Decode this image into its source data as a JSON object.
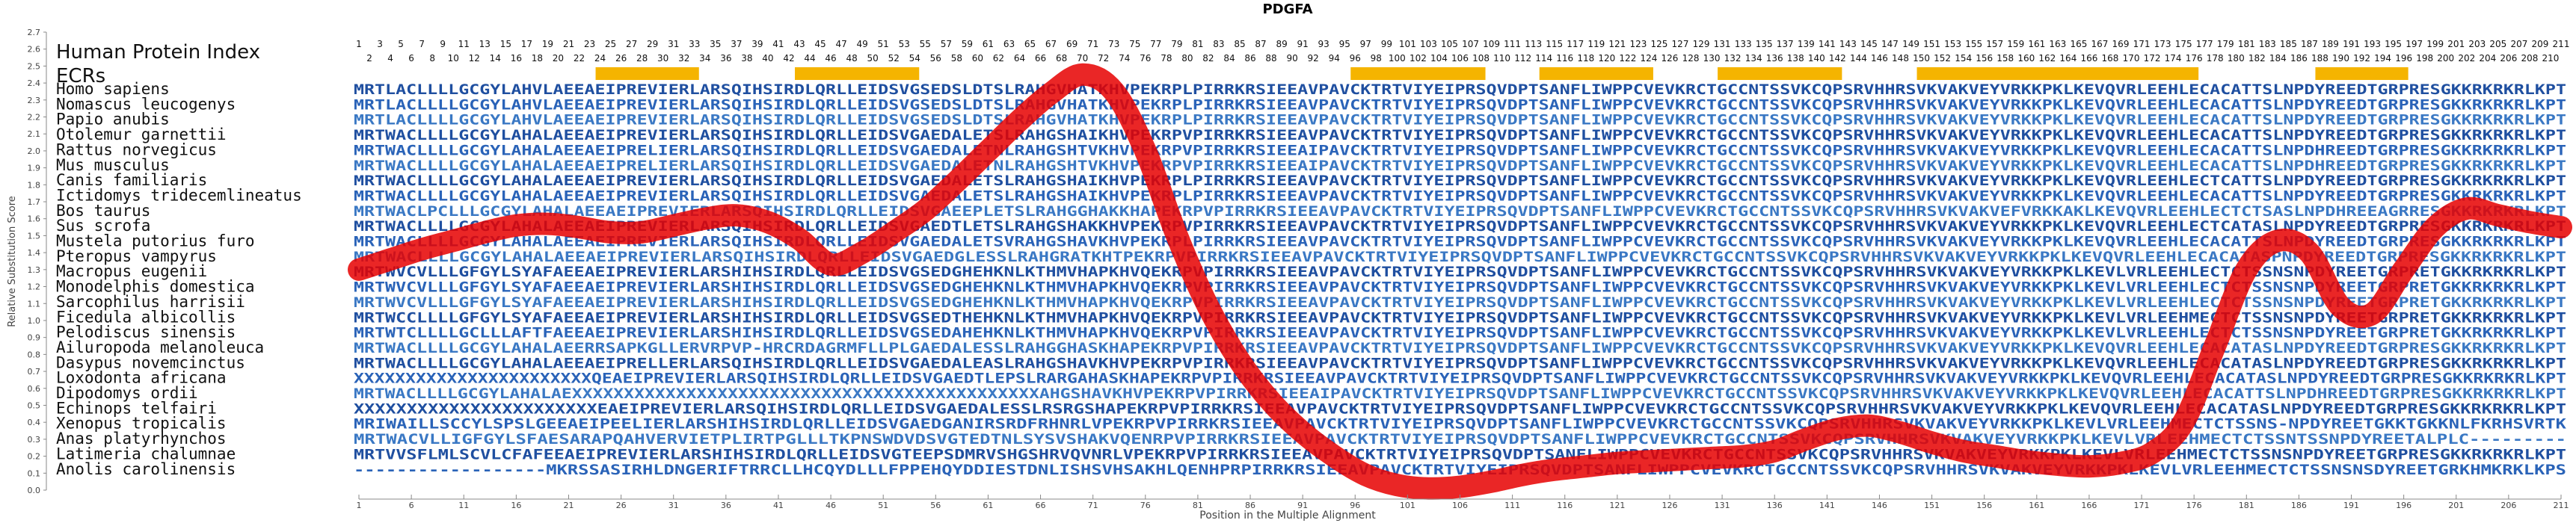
{
  "chart_data": {
    "type": "line",
    "title": "PDGFA",
    "xlabel": "Position in the Multiple Alignment",
    "ylabel": "Relative Substitution Score",
    "xlim": [
      1,
      211
    ],
    "ylim": [
      0.0,
      2.7
    ],
    "yticks": [
      "0.0",
      "0.1",
      "0.2",
      "0.3",
      "0.4",
      "0.5",
      "0.6",
      "0.7",
      "0.8",
      "0.9",
      "1.0",
      "1.1",
      "1.2",
      "1.3",
      "1.4",
      "1.5",
      "1.6",
      "1.7",
      "1.8",
      "1.9",
      "2.0",
      "2.1",
      "2.2",
      "2.3",
      "2.4",
      "2.5",
      "2.6",
      "2.7"
    ],
    "xticks": [
      1,
      6,
      11,
      16,
      21,
      26,
      31,
      36,
      41,
      46,
      51,
      56,
      61,
      66,
      71,
      76,
      81,
      86,
      91,
      96,
      101,
      106,
      111,
      116,
      121,
      126,
      131,
      136,
      141,
      146,
      151,
      156,
      161,
      166,
      171,
      176,
      181,
      186,
      191,
      196,
      201,
      206,
      211
    ],
    "index_label": "Human Protein Index",
    "ecrs_label": "ECRs",
    "index_row1": [
      "1",
      "3",
      "5",
      "7",
      "9",
      "11",
      "13",
      "15",
      "17",
      "19",
      "21",
      "23",
      "25",
      "27",
      "29",
      "31",
      "33",
      "35",
      "37",
      "39",
      "41",
      "43",
      "45",
      "47",
      "49",
      "51",
      "53",
      "55",
      "57",
      "59",
      "61",
      "63",
      "65",
      "67",
      "69",
      "71",
      "73",
      "75",
      "77",
      "79",
      "81",
      "83",
      "85",
      "87",
      "89",
      "91",
      "93",
      "95",
      "97",
      "99",
      "101",
      "103",
      "105",
      "107",
      "109",
      "111",
      "113",
      "115",
      "117",
      "119",
      "121",
      "123",
      "125",
      "127",
      "129",
      "131",
      "133",
      "135",
      "137",
      "139",
      "141",
      "143",
      "145",
      "147",
      "149",
      "151",
      "153",
      "155",
      "157",
      "159",
      "161",
      "163",
      "165",
      "167",
      "169",
      "171",
      "173",
      "175",
      "177",
      "179",
      "181",
      "183",
      "185",
      "187",
      "189",
      "191",
      "193",
      "195",
      "197",
      "199",
      "201",
      "203",
      "205",
      "207",
      "209",
      "211"
    ],
    "index_row2": [
      "2",
      "4",
      "6",
      "8",
      "10",
      "12",
      "14",
      "16",
      "18",
      "20",
      "22",
      "24",
      "26",
      "28",
      "30",
      "32",
      "34",
      "36",
      "38",
      "40",
      "42",
      "44",
      "46",
      "48",
      "50",
      "52",
      "54",
      "56",
      "58",
      "60",
      "62",
      "64",
      "66",
      "68",
      "70",
      "72",
      "74",
      "76",
      "78",
      "80",
      "82",
      "84",
      "86",
      "88",
      "90",
      "92",
      "94",
      "96",
      "98",
      "100",
      "102",
      "104",
      "106",
      "108",
      "110",
      "112",
      "114",
      "116",
      "118",
      "120",
      "122",
      "124",
      "126",
      "128",
      "130",
      "132",
      "134",
      "136",
      "138",
      "140",
      "142",
      "144",
      "146",
      "148",
      "150",
      "152",
      "154",
      "156",
      "158",
      "160",
      "162",
      "164",
      "166",
      "168",
      "170",
      "172",
      "174",
      "176",
      "178",
      "180",
      "182",
      "184",
      "186",
      "188",
      "190",
      "192",
      "194",
      "196",
      "198",
      "200",
      "202",
      "204",
      "206",
      "208",
      "210"
    ],
    "ecrs": [
      [
        24,
        33
      ],
      [
        43,
        54
      ],
      [
        96,
        108
      ],
      [
        114,
        124
      ],
      [
        131,
        142
      ],
      [
        150,
        176
      ],
      [
        188,
        196
      ]
    ],
    "line": {
      "name": "",
      "color": "#e60000",
      "x": [
        1,
        4,
        7,
        10,
        13,
        16,
        19,
        22,
        25,
        28,
        31,
        34,
        37,
        40,
        43,
        46,
        49,
        52,
        55,
        58,
        61,
        64,
        67,
        70,
        73,
        76,
        79,
        82,
        85,
        88,
        91,
        94,
        97,
        100,
        103,
        106,
        109,
        112,
        115,
        118,
        121,
        124,
        127,
        130,
        133,
        136,
        139,
        142,
        145,
        148,
        151,
        154,
        157,
        160,
        163,
        166,
        169,
        172,
        175,
        178,
        181,
        184,
        187,
        190,
        193,
        196,
        199,
        202,
        205,
        208,
        211
      ],
      "y": [
        1.3,
        1.36,
        1.42,
        1.47,
        1.52,
        1.56,
        1.57,
        1.55,
        1.52,
        1.52,
        1.56,
        1.6,
        1.62,
        1.58,
        1.48,
        1.33,
        1.4,
        1.52,
        1.65,
        1.82,
        2.0,
        2.18,
        2.34,
        2.45,
        2.35,
        2.0,
        1.5,
        1.08,
        0.76,
        0.52,
        0.34,
        0.2,
        0.09,
        0.03,
        0.01,
        0.02,
        0.05,
        0.09,
        0.12,
        0.14,
        0.16,
        0.17,
        0.18,
        0.19,
        0.2,
        0.23,
        0.3,
        0.36,
        0.38,
        0.34,
        0.28,
        0.23,
        0.2,
        0.17,
        0.15,
        0.14,
        0.16,
        0.22,
        0.4,
        0.85,
        1.3,
        1.47,
        1.4,
        1.08,
        1.04,
        1.3,
        1.55,
        1.66,
        1.62,
        1.58,
        1.55
      ]
    },
    "species": [
      "Homo sapiens",
      "Nomascus leucogenys",
      "Papio anubis",
      "Otolemur garnettii",
      "Rattus norvegicus",
      "Mus musculus",
      "Canis familiaris",
      "Ictidomys tridecemlineatus",
      "Bos taurus",
      "Sus scrofa",
      "Mustela putorius furo",
      "Pteropus vampyrus",
      "Macropus eugenii",
      "Monodelphis domestica",
      "Sarcophilus harrisii",
      "Ficedula albicollis",
      "Pelodiscus sinensis",
      "Ailuropoda melanoleuca",
      "Dasypus novemcinctus",
      "Loxodonta africana",
      "Dipodomys ordii",
      "Echinops telfairi",
      "Xenopus tropicalis",
      "Anas platyrhynchos",
      "Latimeria chalumnae",
      "Anolis carolinensis"
    ],
    "sequences": [
      "MRTLACLLLLGCGYLAHVLAEEAEIPREVIERLARSQIHSIRDLQRLLEIDSVGSEDSLDTSLRAHGVHATKHVPEKRPLPIRRKRSIEEAVPAVCKTRTVIYEIPRSQVDPTSANFLIWPPCVEVKRCTGCCNTSSVKCQPSRVHHRSVKVAKVEYVRKKPKLKEVQVRLEEHLECACATTSLNPDYREEDTGRPRESGKKRKRKRLKPT",
      "MRTLACLLLLGCGYLAHVLAEEAEIPREVIERLARSQIHSIRDLQRLLEIDSVGSEDSLDTSLRAHGVHATKHVPEKRPLPIRRKRSIEEAVPAVCKTRTVIYEIPRSQVDPTSANFLIWPPCVEVKRCTGCCNTSSVKCQPSRVHHRSVKVAKVEYVRKKPKLKEVQVRLEEHLECACATTSLNPDYREEDTGRPRESGKKRKRKRLKPT",
      "MRTLACLLLLGCGYLAHVLAEEAEIPREVIERLARSQIHSIRDLQRLLEIDSVGSEDSLDTSLRAHGVHATKHVPEKRPLPIRRKRSIEEAVPAVCKTRTVIYEIPRSQVDPTSANFLIWPPCVEVKRCTGCCNTSSVKCQPSRVHHRSVKVAKVEYVRKKPKLKEVQVRLEEHLECACATTSLNPDYREEDTGRPRESGKKRKRKRLKPT",
      "MRTWACLLLLGCGYLAHALAEEAEIPREVIERLARSQIHSIRDLQRLLEIDSVGAEDALETSLRAHGSHAIKHVPEKRPVPIRRKRSIEEAVPAVCKTRTVIYEIPRSQVDPTSANFLIWPPCVEVKRCTGCCNTSSVKCQPSRVHHRSVKVAKVEYVRKKPKLKEVQVRLEEHLECACATTSLNPDYREEDTGRPRESGKKRKRKRLKPT",
      "MRTWACLLLLGCGYLAHALAEEAEIPRELIERLARSQIHSIRDLQRLLEIDSVGAEDALETNLRAHGSHTVKHVPEKRPVPIRRKRSIEEAIPAVCKTRTVIYEIPRSQVDPTSANFLIWPPCVEVKRCTGCCNTSSVKCQPSRVHHRSVKVAKVEYVRKKPKLKEVQVRLEEHLECACATTSLNPDHREEDTGRPRESGKKRKRKRLKPT",
      "MRTWACLLLLGCGYLAHALAEEAEIPRELIERLARSQIHSIRDLQRLLEIDSVGAEDALETNLRAHGSHTVKHVPEKRPVPIRRKRSIEEAIPAVCKTRTVIYEIPRSQVDPTSANFLIWPPCVEVKRCTGCCNTSSVKCQPSRVHHRSVKVAKVEYVRKKPKLKEVQVRLEEHLECACATTSLNPDHREEDTGRPRESGKKRKRKRLKPT",
      "MRTWACLLLLGCGYLAHALAEEAEIPREVIERLARSQIHSIRDLQRLLEIDSVGAEDALETSLRAHGSHAIKHVPEKRPLPIRRKRSIEEAVPAVCKTRTVIYEIPRSQVDPTSANFLIWPPCVEVKRCTGCCNTSSVKCQPSRVHHRSVKVAKVEYVRKKPKLKEVQVRLEEHLECTCATTSLNPDYREEDTGRPRESGKKRKRKRLKPT",
      "MRTWACLLLLGCGYLAHALAEEAEIPREVIERLARSQIHSIRDLQRLLEIDSVGAEDALETSLRAHGSHAIKHVPEKRPLPIRRKRSIEEAVPAVCKTRTVIYEIPRSQVDPTSANFLIWPPCVEVKRCTGCCNTSSVKCQPSRVHHRSVKVAKVEYVRKKPKLKEVQVRLEEHLECACATTSLNPDYREEDTGRPRESGKKRKRKRLKPT",
      "MRTWACLPCLLLGCGYLAHALAEEAEIPREVIERLARSQIHSIRDLQRLLEIDSVGAEEPLETSLRAHGGHAKKHAPEKRPVPIRRKRSIEEAVPAVCKTRTVIYEIPRSQVDPTSANFLIWPPCVEVKRCTGCCNTSSVKCQPSRVHHRSVKVAKVEFVRKKAKLKEVQVRLEEHLECTCTSASLNPDHREEAGRRESGKKRKRKRLKPT",
      "MRTWACLLLLGCGYLAHALAEEAEIPREVIERLARSQIHSIRDLQRLLEIDSVGAEDTLETSLRAHGSHAKKHVPEKRPVPIRRKRSIEEAVPAVCKTRTVIYEIPRSQVDPTSANFLIWPPCVEVKRCTGCCNTSSVKCQPSRVHHRSVKVAKVEYVRKKPKLKEVQVRLEEHLECTCATASLNPDYREEDTGRPRESGKKRKRKRLKPT",
      "MRTWACLLLLGCGYLAHALAEEAEIPREVIERLARSQIHSIRDLQRLLEIDSVGAEDALETSVRAHGSHAVKHVPEKRPLPIRRKRSIEEAVPAVCKTRTVIYEIPRSQVDPTSANFLIWPPCVEVKRCTGCCNTSSVKCQPSRVHHRSVKVAKVEYVRKKPKLKEVQVRLEEHLECACATTSLNPDYREEDTGRPRESGKKRKRKRLKPT",
      "MRTWACLLLLGCGYLAHALAEEAEIPREVIERLARSQIHSIRDLQRLLEIDSVGAEDGLESSLRAHGRATKHTPEKRPVPIRRKRSIEEAVPAVCKTRTVIYEIPRSQVDPTSANFLIWPPCVEVKRCTGCCNTSSVKCQPSRVHHRSVKVAKVEYVRKKPKLKEVQVRLEEHLECACATASPNPDYREEDTGRPRESGKKRKRKRLKPT",
      "MRTWVCVLLLGFGYLSYAFAEEAEIPREVIERLARSHIHSIRDLQRLLEIDSVGSEDGHEHKNLKTHMVHAPKHVQEKRPVPIRRKRSIEEAVPAVCKTRTVIYEIPRSQVDPTSANFLIWPPCVEVKRCTGCCNTSSVKCQPSRVHHRSVKVAKVEYVRKKPKLKEVLVRLEEHLECTCTSSNSNPDYREETGRPRETGKKRKRKRLKPT",
      "MRTWVCVLLLGFGYLSYAFAEEAEIPREVIERLARSHIHSIRDLQRLLEIDSVGSEDGHEHKNLKTHMVHAPKHVQEKRPVPIRRKRSIEEAVPAVCKTRTVIYEIPRSQVDPTSANFLIWPPCVEVKRCTGCCNTSSVKCQPSRVHHRSVKVAKVEYVRKKPKLKEVLVRLEEHLECTCTSSNSNPDYREETGRPRETGKKRKRKRLKPT",
      "MRTWVCVLLLGFGYLSYAFAEEAEIPREVIERLARSHIHSIRDLQRLLEIDSVGSEDGHEHKNLKTHMVHAPKHVQEKRPVPIRRKRSIEEAVPAVCKTRTVIYEIPRSQVDPTSANFLIWPPCVEVKRCTGCCNTSSVKCQPSRVHHRSVKVAKVEYVRKKPKLKEVLVRLEEHLECTCTSSNSNPDYREETGRPRETGKKRKRKRLKPT",
      "MRTWCCLLLLGFGYLSYAFAEEAEIPREVIERLARSHIHSIRDLQRLLEIDSVGSEDTHEHKNLKTHMVHAPKHVQEKRPVPIRRKRSIEEAVPAVCKTRTVIYEIPRSQVDPTSANFLIWPPCVEVKRCTGCCNTSSVKCQPSRVHHRSVKVAKVEYVRKKPKLKEVLVRLEEHMECTCTSSNSNPDYREETGRPRETGKKRKRKRLKPT",
      "MRTWTCLLLLGCLLLAFTFAEEAEIPREVIERLARSHIHSIRDLQRLLEIDSVGSEDAHEHKNLKTHMVHAPKHVQEKRPVPIRRKRSIEEAVPAVCKTRTVIYEIPRSQVDPTSANFLIWPPCVEVKRCTGCCNTSSVKCQPSRVHHRSVKVAKVEYVRKKPKLKEVLVRLEEHLECTCTSSNSNPDYREETGRPRETGKKRKRKRLKPT",
      "MRTWACLLLLGCGYLAHALAEERRSAPKGLLERVRPVP-HRCRDAGRMFLLPLGAEDALESSLRAHGGHASKHAPEKRPVPIRRKRSIEEAVPAVCKTRTVIYEIPRSQVDPTSANFLIWPPCVEVKRCTGCCNTSSVKCQPSRVHHRSVKVAKVEYVRKKPKLKEVQVRLEEHLECACATASLNPDYREEDTGRPRESGKKRKRKRLKPT",
      "MRTWACLLLLGCGYLAHALAEEAEIPRELLERLARSQIHSIRDLQRLLEIDSVGAEDALEASLRAHGSHAVKHVPEKRPVPIRRKRSIEEAVPAVCKTRTVIYEIPRSQVDPTSANFLIWPPCVEVKRCTGCCNTSSVKCQPSRVHHRSVKVAKVEYVRKKPKLKEVQVRLEEHLECACATASLNPDYREEDTGRPRESGKKRKRKRLKPT",
      "XXXXXXXXXXXXXXXXXXXXXXXQEAEIPREVIERLARSQIHSIRDLQRLLEIDSVGAEDTLEPSLRARGAHASKHAPEKRPVPIRRKRSIEEAVPAVCKTRTVIYEIPRSQVDPTSANFLIWPPCVEVKRCTGCCNTSSVKCQPSRVHHRSVKVAKVEYVRKKPKLKEVQVRLEEHLECACATASLNPDYREEDTGRPRESGKKRKRKRLKPT",
      "MRTWACLLLLGCGYLAHALAEXXXXXXXXXXXXXXXXXXXXXXXXXXXXXXXXXXXXXXXXXXXXXAHGSHAVKHVPEKRPVPIRRKRSIEEAIPAVCKTRTVIYEIPRSQVDPTSANFLIWPPCVEVKRCTGCCNTSSVKCQPSRVHHRSVKVAKVEYVRKKPKLKEVQVRLEEHLECACATTSLNPDHREEDTGRPRESGKKRKRKRLKPT",
      "XXXXXXXXXXXXXXXXXXXXXXXEAEIPREVIERLARSQIHSIRDLQRLLEIDSVGAEDALESSLRSRGSHAPEKRPVPIRRKRSIEEAVPAVCKTRTVIYEIPRSQVDPTSANFLIWPPCVEVKRCTGCCNTSSVKCQPSRVHHRSVKVAKVEYVRKKPKLKEVQVRLEEHLECACATASLNPDYREEDTGRPRESGKKRKRKRLKPT",
      "MRIWAILLSCCYLSPSLGEEAEIPEELIERLARSHIHSIRDLQRLLEIDSVGAEDGANIRSRDFRHNRLVPEKRPVPIRRKRSIEEAVPAVCKTRTVIYEIPRSQVDPTSANFLIWPPCVEVKRCTGCCNTSSVKCQPSRVHHRSVKVAKVEYVRKKPKLKEVLVRLEEHMECTCTSSNS-NPDYREETGKKTGKKNLFKRHSVRTK",
      "MRTWACVLLIGFGYLSFAESARAPQAHVERVIETPLIRTPGLLLTKPNSWDVDSVGTEDTNLSYSVSHAKVQENRPVPIRRKRSIEEAVPAVCKTRTVIYEIPRSQVDPTSANFLIWPPCVEVKRCTGCCNTSSVKCQPSRVHHRSVKVAKVEYVRKKPKLKEVLVRLEEHMECTCTSSNTSSNPDYREETALPLC---------",
      "MRTVVSFLMLSCVLCFAFEEAEIPREVIERLARSHIHSIRDLQRLLEIDSVGTEEPSDMRVSHGSHRVQVNRLVPEKRPVPIRRKRSIEEAVPAVCKTRTVIYEIPRSQVDPTSANFLIWPPCVEVKRCTGCCNTSSVKCQPSRVHHRSVKVAKVEYVRKKPKLKEVLVRLEEHMECTCTSSNSNPDYREETGRPRESGKKRKRKRLKPT",
      "------------------MKRSSASIRHLDNGERIFTRRCLLHCQYDLLLFPPEHQYDDIESTDNLISHSVHSAKHLQENHPRPIRRKRSIEEAVPAVCKTRTVIYEIPRSQVDPTSANFLIWPPCVEVKRCTGCCNTSSVKCQPSRVHHRSVKVAKVEYVRKKPKLKEVLVRLEEHMECTCTSSNSNSDYREETGRKHMKRKLKPS"
    ]
  }
}
